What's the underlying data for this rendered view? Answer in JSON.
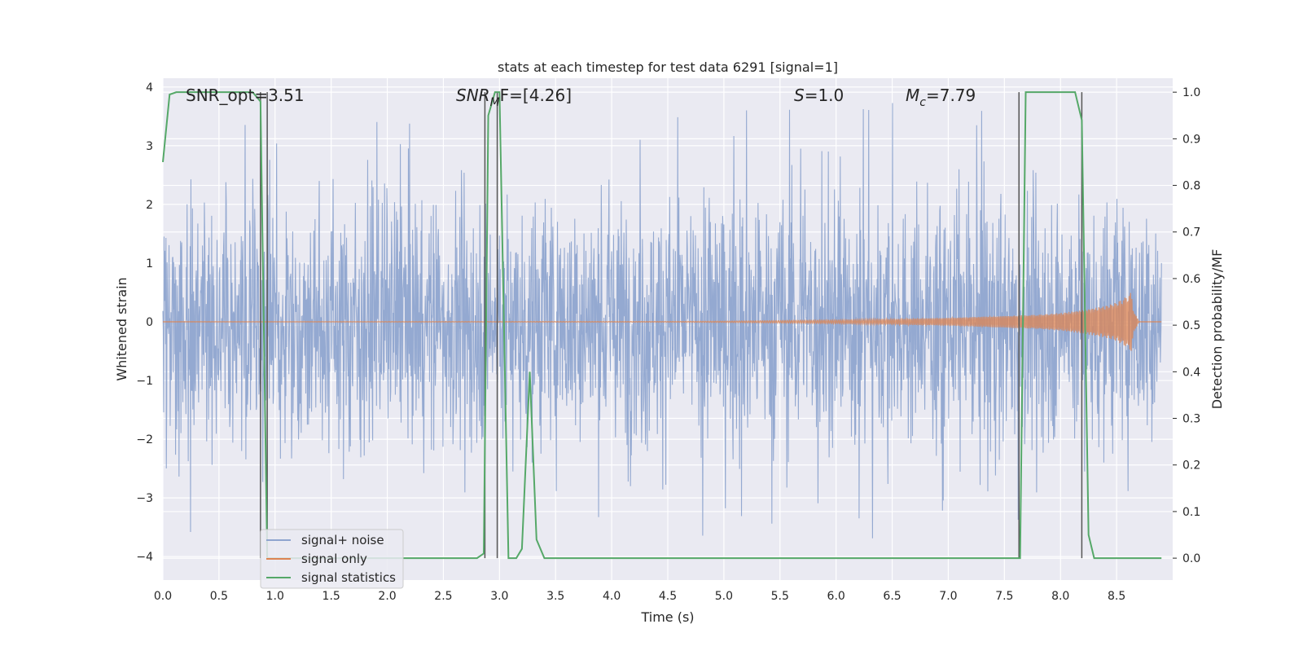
{
  "chart_data": {
    "type": "line",
    "title": "stats at each timestep for test data 6291 [signal=1]",
    "xlabel": "Time (s)",
    "ylabel": "Whitened strain",
    "ylabel_right": "Detection probability/MF",
    "xlim": [
      0,
      9
    ],
    "ylim": [
      -4.4,
      4.15
    ],
    "ylim_right": [
      -0.047,
      1.03
    ],
    "x_ticks": [
      "0.0",
      "0.5",
      "1.0",
      "1.5",
      "2.0",
      "2.5",
      "3.0",
      "3.5",
      "4.0",
      "4.5",
      "5.0",
      "5.5",
      "6.0",
      "6.5",
      "7.0",
      "7.5",
      "8.0",
      "8.5"
    ],
    "y_ticks": [
      "−4",
      "−3",
      "−2",
      "−1",
      "0",
      "1",
      "2",
      "3",
      "4"
    ],
    "y_ticks_right": [
      "0.0",
      "0.1",
      "0.2",
      "0.3",
      "0.4",
      "0.5",
      "0.6",
      "0.7",
      "0.8",
      "0.9",
      "1.0"
    ],
    "grid": true,
    "legend_position": "lower-left",
    "annotations": {
      "snr_opt": "SNR_opt=3.51",
      "snr_mf_main": "SNR",
      "snr_mf_sub": "M",
      "snr_mf_rest": "F=[4.26]",
      "s_main": "S",
      "s_rest": "=1.0",
      "mc_main": "M",
      "mc_sub": "c",
      "mc_rest": "=7.79"
    },
    "series": [
      {
        "name": "signal+ noise",
        "color": "#8fa5cf",
        "description": "whitened noisy strain, roughly gaussian in [-2.6, 2.6] with spikes up to ~3.9 and down to ~-4"
      },
      {
        "name": "signal only",
        "color": "#dd8452",
        "envelope_x": [
          0.0,
          4.5,
          5.0,
          5.5,
          6.0,
          6.5,
          7.0,
          7.5,
          7.8,
          8.0,
          8.2,
          8.4,
          8.5,
          8.58,
          8.63,
          8.65,
          8.7,
          8.9
        ],
        "envelope_y": [
          0.0,
          0.005,
          0.01,
          0.02,
          0.03,
          0.045,
          0.065,
          0.1,
          0.12,
          0.15,
          0.2,
          0.27,
          0.33,
          0.42,
          0.5,
          0.2,
          0.0,
          0.0
        ]
      },
      {
        "name": "signal statistics",
        "color": "#55a868",
        "axis": "right",
        "x": [
          0.0,
          0.06,
          0.12,
          0.8,
          0.87,
          0.93,
          2.8,
          2.86,
          2.9,
          2.96,
          3.0,
          3.08,
          3.15,
          3.2,
          3.27,
          3.33,
          3.4,
          3.46,
          7.6,
          7.64,
          7.69,
          7.75,
          8.13,
          8.19,
          8.25,
          8.3,
          8.9
        ],
        "y": [
          0.85,
          0.995,
          1.0,
          1.0,
          0.98,
          0.0,
          0.0,
          0.01,
          0.95,
          1.0,
          1.0,
          0.0,
          0.0,
          0.02,
          0.4,
          0.04,
          0.0,
          0.0,
          0.0,
          0.0,
          1.0,
          1.0,
          1.0,
          0.94,
          0.05,
          0.0,
          0.0
        ]
      }
    ],
    "vlines": [
      0.87,
      0.93,
      2.87,
      2.98,
      7.63,
      8.19
    ]
  }
}
